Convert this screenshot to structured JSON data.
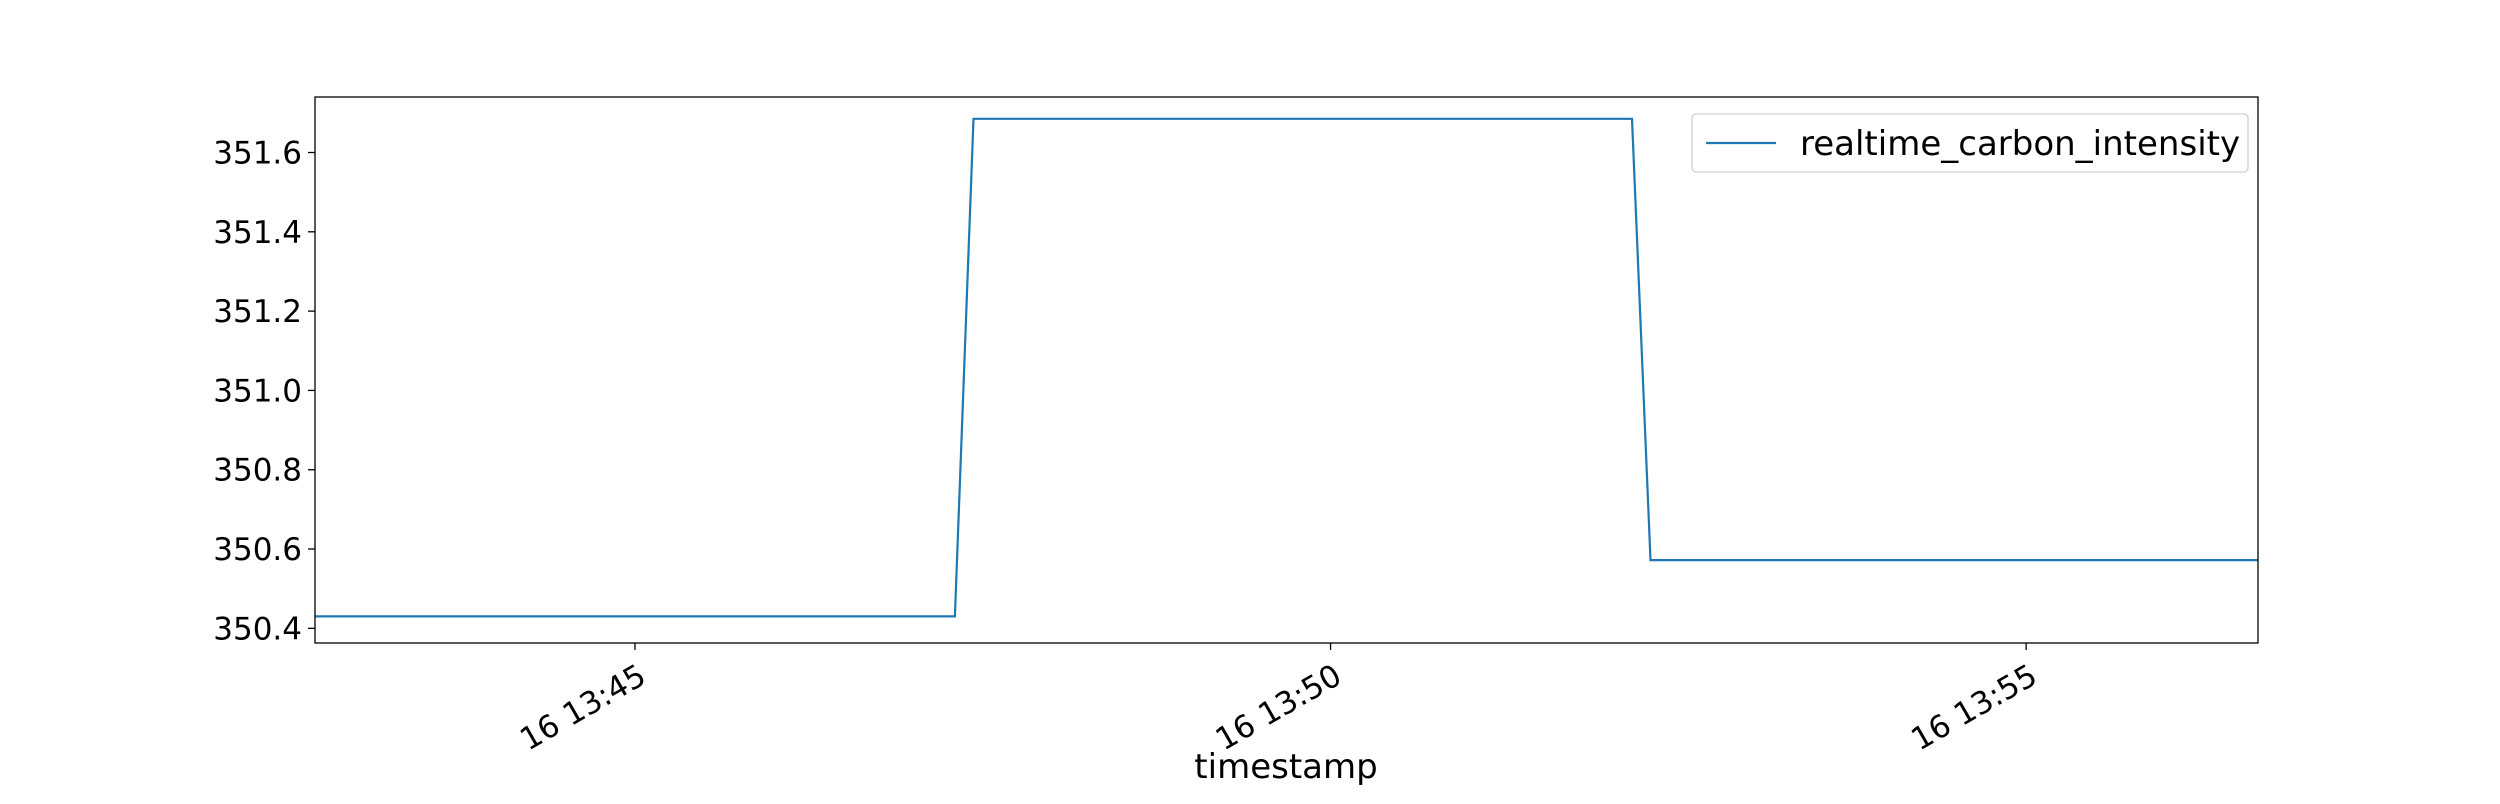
{
  "chart_data": {
    "type": "line",
    "xlabel": "timestamp",
    "ylabel": "",
    "x_ticks": [
      "16 13:45",
      "16 13:50",
      "16 13:55"
    ],
    "y_ticks": [
      "350.4",
      "350.6",
      "350.8",
      "351.0",
      "351.2",
      "351.4",
      "351.6"
    ],
    "ylim": [
      350.363,
      351.74
    ],
    "xlim": [
      "13:42:42",
      "13:56:40"
    ],
    "legend_position": "upper right",
    "grid": false,
    "series": [
      {
        "name": "realtime_carbon_intensity",
        "color": "#1f77b4",
        "x": [
          "13:42:42",
          "13:47:18",
          "13:47:26",
          "13:52:10",
          "13:52:18",
          "13:56:40"
        ],
        "values": [
          350.43,
          350.43,
          351.685,
          351.685,
          350.572,
          350.572
        ]
      }
    ]
  }
}
